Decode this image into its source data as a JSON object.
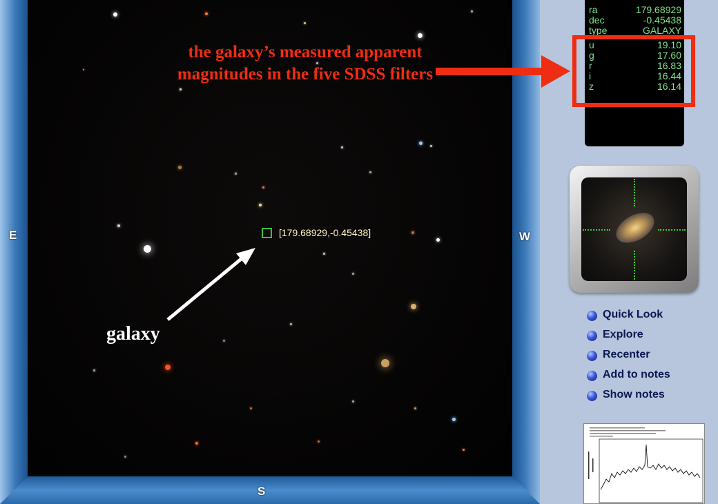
{
  "sky_view": {
    "compass": {
      "east": "E",
      "west": "W",
      "south": "S"
    },
    "target_label": "[179.68929,-0.45438]",
    "annotations": {
      "galaxy_label": "galaxy",
      "magnitudes_callout": "the galaxy’s measured apparent magnitudes in the five SDSS filters"
    },
    "colors": {
      "annotation": "#ee2d12",
      "target_box": "#39c13a",
      "info_text": "#7fe38a"
    }
  },
  "object_info": {
    "rows": [
      {
        "key": "ra",
        "value": "179.68929"
      },
      {
        "key": "dec",
        "value": "-0.45438"
      },
      {
        "key": "type",
        "value": "GALAXY"
      },
      {
        "key": "u",
        "value": "19.10"
      },
      {
        "key": "g",
        "value": "17.60"
      },
      {
        "key": "r",
        "value": "16.83"
      },
      {
        "key": "i",
        "value": "16.44"
      },
      {
        "key": "z",
        "value": "16.14"
      }
    ]
  },
  "actions": [
    {
      "label": "Quick Look",
      "icon": "blue-bullet-icon"
    },
    {
      "label": "Explore",
      "icon": "blue-bullet-icon"
    },
    {
      "label": "Recenter",
      "icon": "blue-bullet-icon"
    },
    {
      "label": "Add to notes",
      "icon": "blue-bullet-icon"
    },
    {
      "label": "Show notes",
      "icon": "blue-bullet-icon"
    }
  ]
}
